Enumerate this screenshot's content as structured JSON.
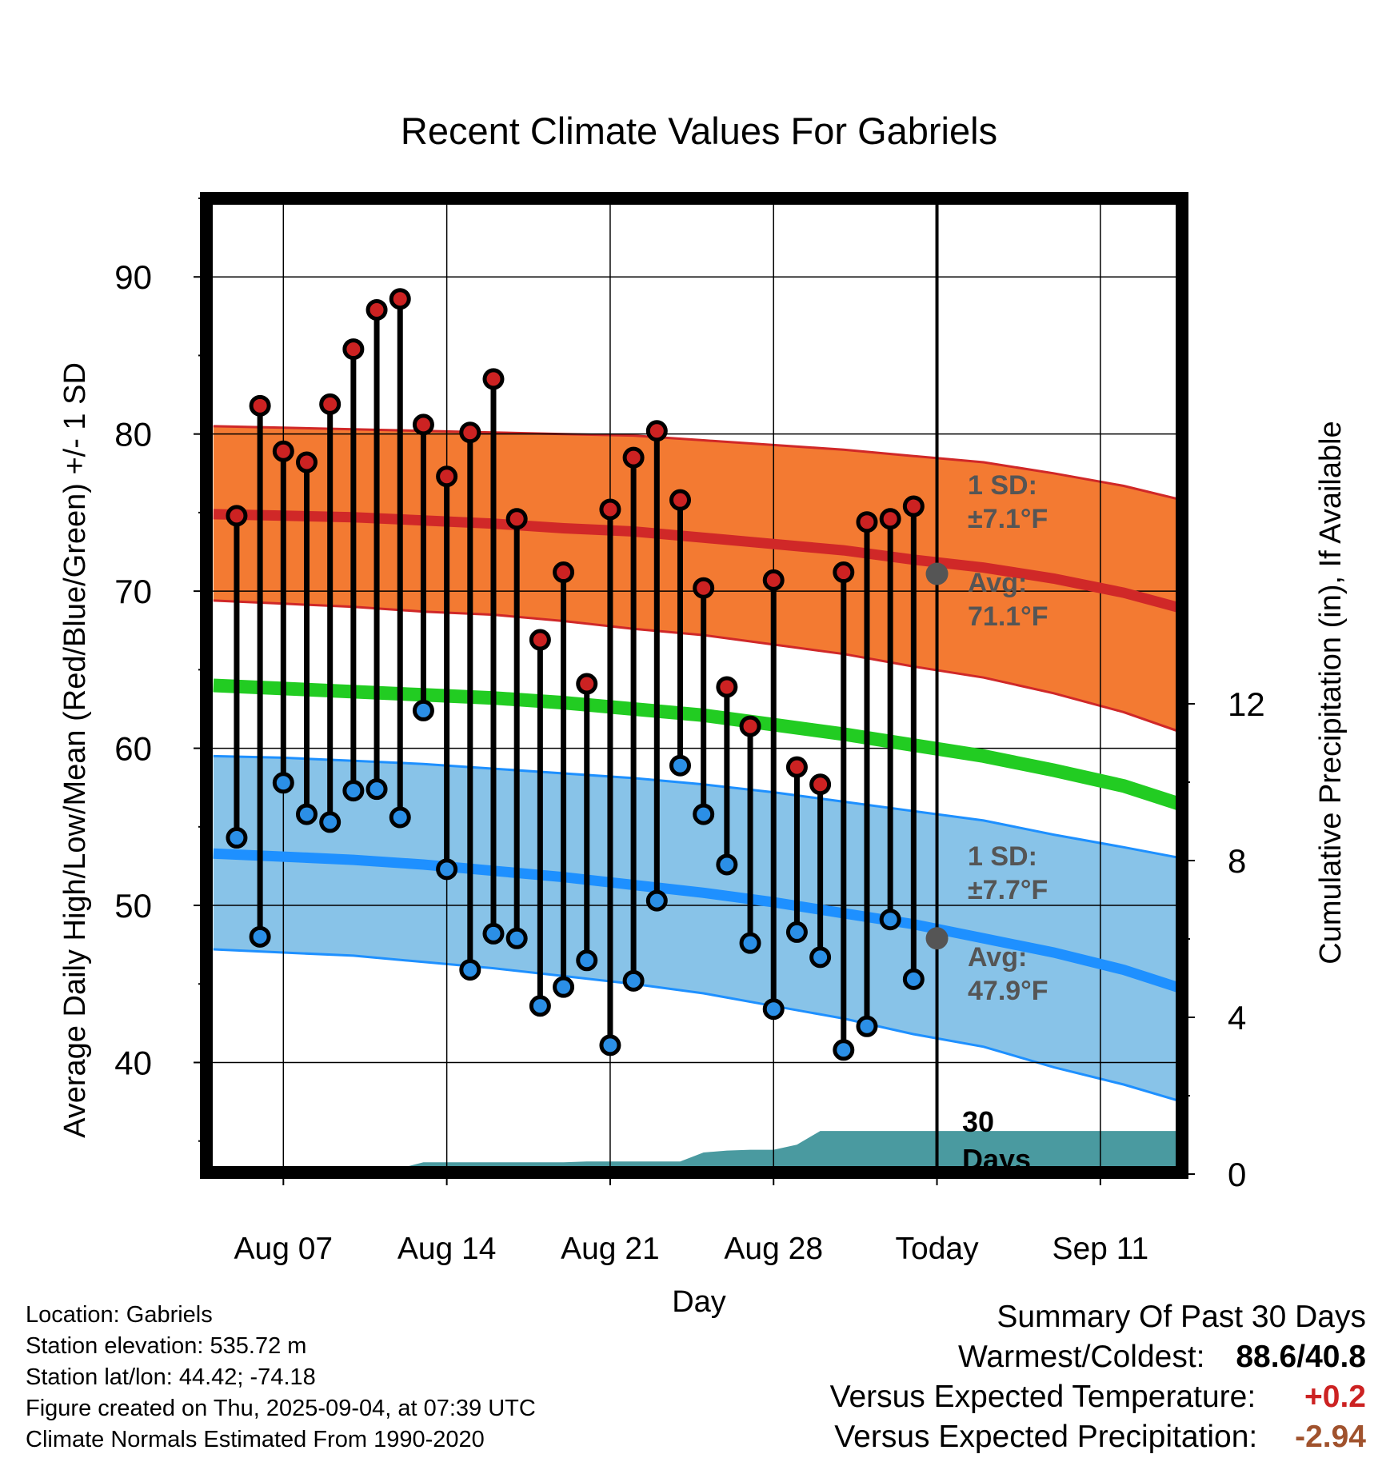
{
  "chart_data": {
    "type": "line",
    "title": "Recent Climate Values For Gabriels",
    "xlabel": "Day",
    "ylabel": "Average Daily High/Low/Mean (Red/Blue/Green) +/- 1 SD",
    "y2label": "Cumulative Precipitation (in), If Available",
    "ylim": [
      33,
      95
    ],
    "y2lim": [
      0,
      30
    ],
    "yticks": [
      "90",
      "80",
      "70",
      "60",
      "50",
      "40"
    ],
    "y2ticks": [
      "12",
      "8",
      "4",
      "0"
    ],
    "x_tick_labels": [
      "Aug 07",
      "Aug 14",
      "Aug 21",
      "Aug 28",
      "Today",
      "Sep 11"
    ],
    "days": [
      "Aug 05",
      "Aug 06",
      "Aug 07",
      "Aug 08",
      "Aug 09",
      "Aug 10",
      "Aug 11",
      "Aug 12",
      "Aug 13",
      "Aug 14",
      "Aug 15",
      "Aug 16",
      "Aug 17",
      "Aug 18",
      "Aug 19",
      "Aug 20",
      "Aug 21",
      "Aug 22",
      "Aug 23",
      "Aug 24",
      "Aug 25",
      "Aug 26",
      "Aug 27",
      "Aug 28",
      "Aug 29",
      "Aug 30",
      "Aug 31",
      "Sep 01",
      "Sep 02",
      "Sep 03"
    ],
    "daily_high": [
      74.8,
      81.8,
      78.9,
      78.2,
      81.9,
      85.4,
      87.9,
      88.6,
      80.6,
      77.3,
      80.1,
      83.5,
      74.6,
      66.9,
      71.2,
      64.1,
      75.2,
      78.5,
      80.2,
      75.8,
      70.2,
      63.9,
      61.4,
      70.7,
      58.8,
      57.7,
      71.2,
      74.4,
      74.6,
      75.4
    ],
    "daily_low": [
      54.3,
      48.0,
      57.8,
      55.8,
      55.3,
      57.3,
      57.4,
      55.6,
      62.4,
      52.3,
      45.9,
      48.2,
      47.9,
      43.6,
      44.8,
      46.5,
      41.1,
      45.2,
      50.3,
      58.9,
      55.8,
      52.6,
      47.6,
      43.4,
      48.3,
      46.7,
      40.8,
      42.3,
      49.1,
      45.3
    ],
    "normals_day": [
      -3,
      0,
      3,
      6,
      9,
      12,
      15,
      18,
      21,
      24,
      27,
      30,
      33,
      36,
      38.5
    ],
    "normal_high": [
      74.9,
      74.8,
      74.7,
      74.5,
      74.3,
      74.0,
      73.8,
      73.4,
      73.0,
      72.6,
      72.0,
      71.5,
      70.8,
      69.9,
      68.9
    ],
    "normal_high_upper": [
      80.5,
      80.4,
      80.3,
      80.2,
      80.1,
      80.0,
      79.9,
      79.6,
      79.3,
      79.0,
      78.6,
      78.2,
      77.5,
      76.7,
      75.8
    ],
    "normal_high_lower": [
      69.4,
      69.2,
      69.0,
      68.7,
      68.5,
      68.1,
      67.6,
      67.2,
      66.6,
      66.0,
      65.2,
      64.5,
      63.5,
      62.3,
      61.0
    ],
    "normal_mean": [
      64.0,
      63.8,
      63.6,
      63.4,
      63.2,
      62.9,
      62.5,
      62.1,
      61.5,
      60.9,
      60.2,
      59.5,
      58.6,
      57.6,
      56.4
    ],
    "normal_low": [
      53.3,
      53.1,
      52.9,
      52.6,
      52.2,
      51.8,
      51.3,
      50.8,
      50.2,
      49.5,
      48.8,
      47.9,
      47.0,
      45.9,
      44.7
    ],
    "normal_low_upper": [
      59.5,
      59.4,
      59.2,
      59.0,
      58.7,
      58.4,
      58.1,
      57.7,
      57.2,
      56.6,
      56.0,
      55.4,
      54.5,
      53.7,
      53.0
    ],
    "normal_low_lower": [
      47.2,
      47.0,
      46.8,
      46.4,
      46.0,
      45.5,
      45.0,
      44.4,
      43.6,
      42.8,
      41.8,
      41.0,
      39.7,
      38.6,
      37.5
    ],
    "precip_day": [
      -3,
      0,
      1,
      2,
      3,
      4,
      5,
      6,
      7,
      8,
      9,
      10,
      11,
      12,
      13,
      14,
      15,
      16,
      17,
      18,
      19,
      20,
      21,
      22,
      23,
      24,
      25,
      26,
      27,
      28,
      29,
      30,
      38.5
    ],
    "cum_precip": [
      0.0,
      0.0,
      0.15,
      0.15,
      0.15,
      0.15,
      0.15,
      0.3,
      0.3,
      0.3,
      0.3,
      0.3,
      0.3,
      0.3,
      0.32,
      0.32,
      0.32,
      0.32,
      0.32,
      0.55,
      0.6,
      0.62,
      0.62,
      0.75,
      1.1,
      1.1,
      1.1,
      1.1,
      1.1,
      1.1,
      1.1,
      1.1,
      1.1
    ],
    "high_sd_label": "1 SD:",
    "high_sd_value": "±7.1°F",
    "high_avg_label": "Avg:",
    "high_avg_value": "71.1°F",
    "high_avg": 71.1,
    "low_sd_label": "1 SD:",
    "low_sd_value": "±7.7°F",
    "low_avg_label": "Avg:",
    "low_avg_value": "47.9°F",
    "low_avg": 47.9,
    "window_label_line1": "30",
    "window_label_line2": "Days",
    "colors": {
      "high_band": "#f37a32",
      "high_line": "#d02828",
      "mean_line": "#22cc22",
      "low_band": "#88c3e8",
      "low_line": "#1e90ff",
      "precip": "#4a9aa0",
      "high_marker": "#cc2222",
      "low_marker": "#2b8fe6",
      "avg_marker": "#555555",
      "annotation_text": "#555555"
    }
  },
  "info": {
    "location": "Location: Gabriels",
    "elevation": "Station elevation: 535.72 m",
    "latlon": "Station lat/lon: 44.42; -74.18",
    "created": "Figure created on Thu, 2025-09-04, at 07:39 UTC",
    "normals": "Climate Normals Estimated From 1990-2020"
  },
  "summary": {
    "title": "Summary Of Past 30 Days",
    "warmest_coldest_label": "Warmest/Coldest:",
    "warmest_coldest_value": "88.6/40.8",
    "temp_label": "Versus Expected Temperature:",
    "temp_value": "+0.2",
    "precip_label": "Versus Expected Precipitation:",
    "precip_value": "-2.94"
  }
}
